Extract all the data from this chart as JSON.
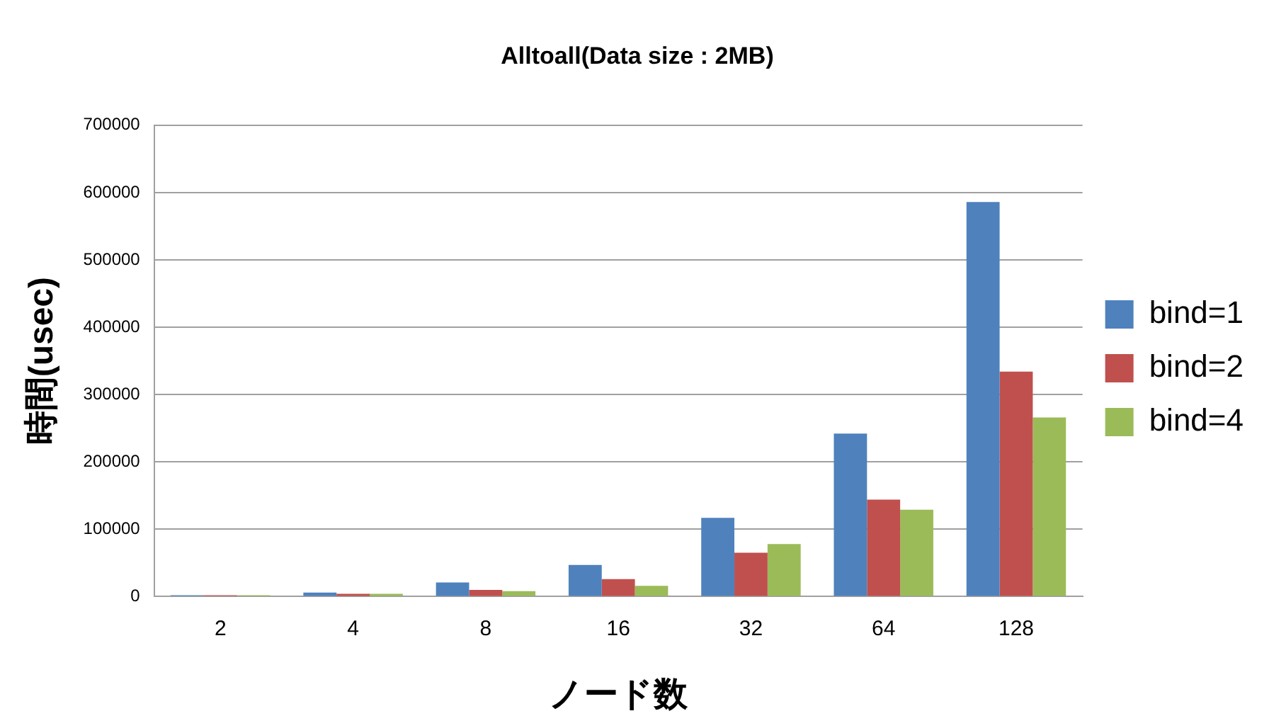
{
  "chart_data": {
    "type": "bar",
    "title": "Alltoall(Data size : 2MB)",
    "xlabel": "ノード数",
    "ylabel": "時間(usec)",
    "categories": [
      "2",
      "4",
      "8",
      "16",
      "32",
      "64",
      "128"
    ],
    "series": [
      {
        "name": "bind=1",
        "color": "#4f81bd",
        "values": [
          2000,
          6000,
          21000,
          47000,
          117000,
          242000,
          586000
        ]
      },
      {
        "name": "bind=2",
        "color": "#c0504d",
        "values": [
          2000,
          4000,
          10000,
          26000,
          65000,
          144000,
          334000
        ]
      },
      {
        "name": "bind=4",
        "color": "#9bbb59",
        "values": [
          2000,
          4000,
          8000,
          16000,
          78000,
          129000,
          266000
        ]
      }
    ],
    "ylim": [
      0,
      700000
    ],
    "yticks": [
      0,
      100000,
      200000,
      300000,
      400000,
      500000,
      600000,
      700000
    ],
    "grid": "y",
    "legend": "right"
  }
}
